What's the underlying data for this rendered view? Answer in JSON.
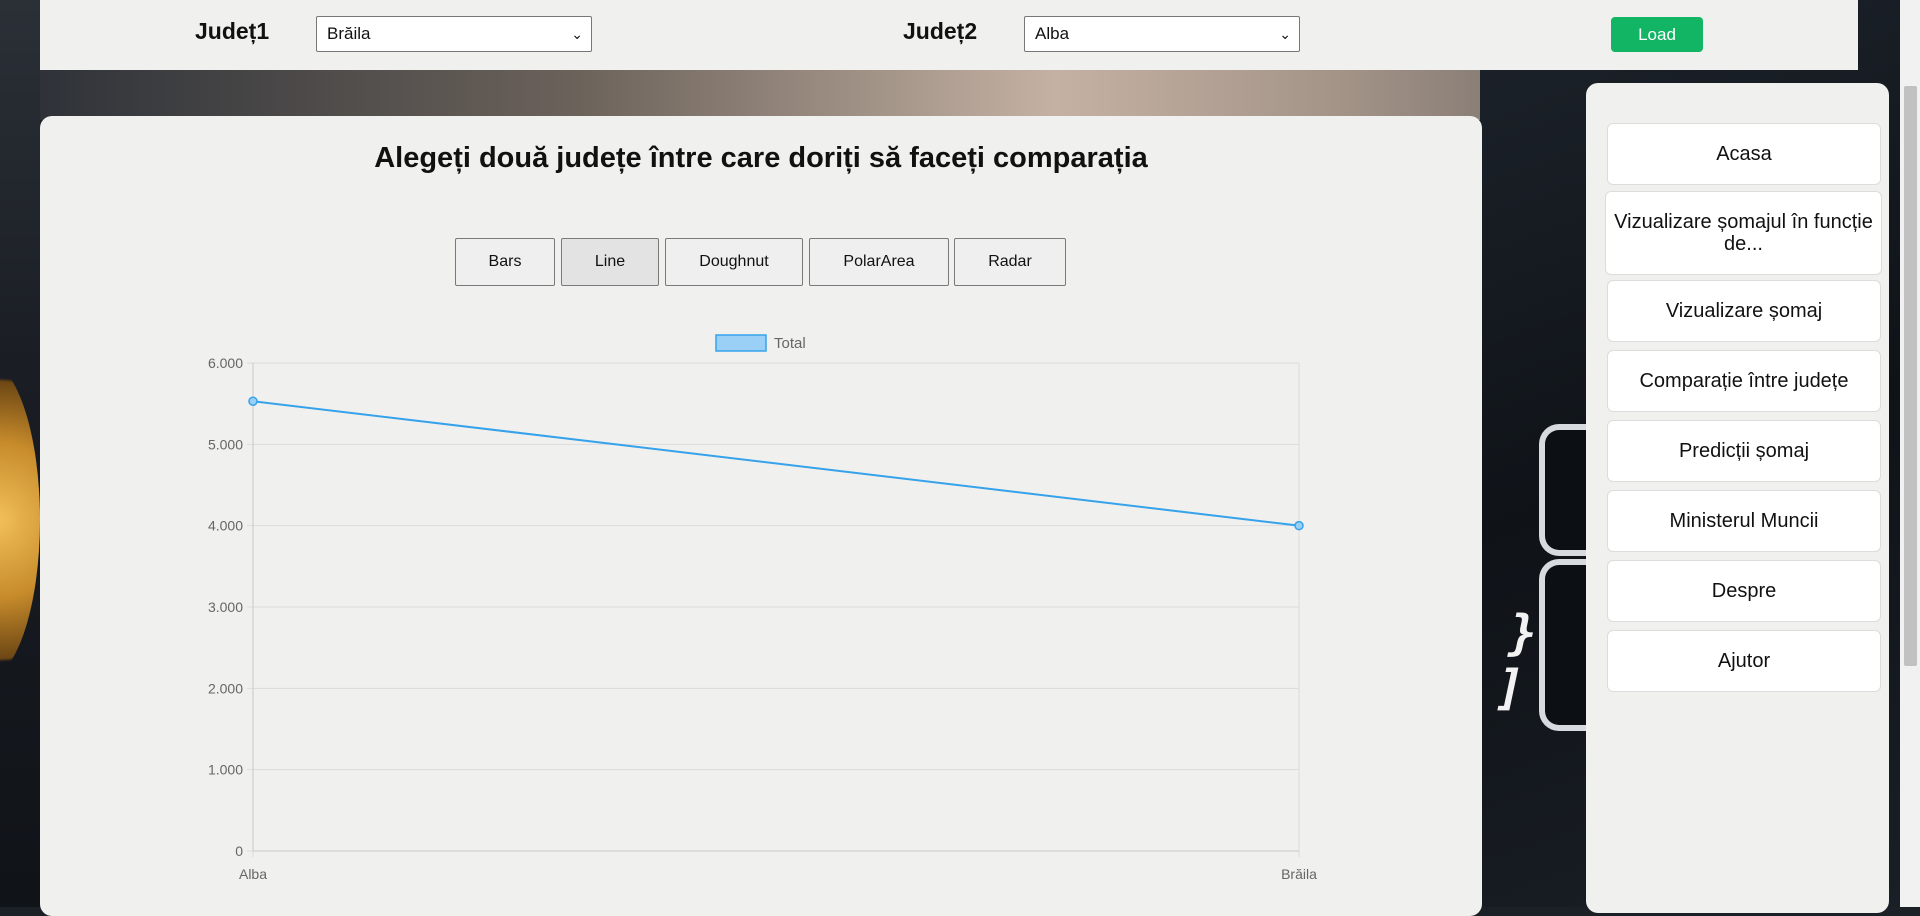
{
  "header": {
    "judet1_label": "Județ1",
    "judet1_value": "Brăila",
    "judet2_label": "Județ2",
    "judet2_value": "Alba",
    "load_label": "Load"
  },
  "main": {
    "title": "Alegeți două județe între care doriți să faceți comparația",
    "chart_buttons": [
      "Bars",
      "Line",
      "Doughnut",
      "PolarArea",
      "Radar"
    ],
    "active_chart": "Line"
  },
  "sidebar": {
    "items": [
      "Acasa",
      "Vizualizare șomajul în funcție de...",
      "Vizualizare șomaj",
      "Comparație între județe",
      "Predicții șomaj",
      "Ministerul Muncii",
      "Despre",
      "Ajutor"
    ]
  },
  "colors": {
    "accent_green": "#11b564",
    "line_color": "#36a2eb",
    "legend_fill": "#9ad0f5"
  },
  "chart_data": {
    "type": "line",
    "categories": [
      "Alba",
      "Brăila"
    ],
    "series": [
      {
        "name": "Total",
        "values": [
          5530,
          4000
        ]
      }
    ],
    "ylim": [
      0,
      6000
    ],
    "yticks": [
      "0",
      "1.000",
      "2.000",
      "3.000",
      "4.000",
      "5.000",
      "6.000"
    ],
    "legend_position": "top",
    "grid": true
  }
}
